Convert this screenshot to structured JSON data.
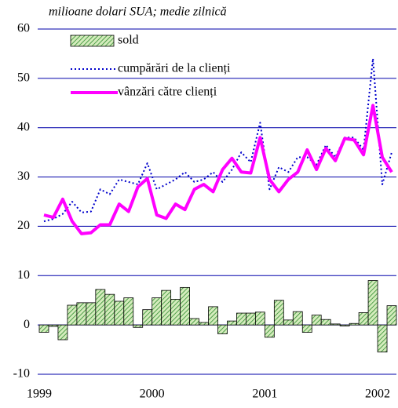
{
  "chart_data": {
    "type": "combo",
    "subtitle": "milioane dolari SUA; medie zilnică",
    "categories": [
      "1999",
      null,
      null,
      null,
      null,
      null,
      null,
      null,
      null,
      null,
      null,
      null,
      "2000",
      null,
      null,
      null,
      null,
      null,
      null,
      null,
      null,
      null,
      null,
      null,
      "2001",
      null,
      null,
      null,
      null,
      null,
      null,
      null,
      null,
      null,
      null,
      null,
      "2002",
      null
    ],
    "series": [
      {
        "name": "sold",
        "type": "bar",
        "color": "#2e8b2e",
        "fill": "#c8e6b0",
        "values": [
          -1.5,
          -0.3,
          -3,
          4,
          4.5,
          4.5,
          7.2,
          6.2,
          4.8,
          5.5,
          -0.5,
          3.1,
          5.5,
          7,
          5.2,
          7.6,
          1.3,
          0.5,
          3.7,
          -1.8,
          0.8,
          2.4,
          2.4,
          2.6,
          -2.5,
          5,
          1,
          2.7,
          -1.5,
          2,
          1.1,
          0.2,
          -0.2,
          0.3,
          2.5,
          9,
          -5.5,
          3.9
        ]
      },
      {
        "name": "cumpărări de la clienți",
        "type": "line",
        "style": "dotted",
        "color": "#0000cc",
        "values": [
          21,
          21.5,
          22.5,
          25,
          22.8,
          23,
          27.5,
          26.5,
          29.5,
          29,
          28.5,
          32.8,
          27.5,
          28.5,
          29.5,
          31,
          29,
          29.5,
          31,
          29,
          31.5,
          35,
          33,
          41,
          27.5,
          32,
          31,
          34,
          34,
          32.5,
          36.5,
          34,
          38,
          38,
          35.5,
          54,
          28.5,
          35
        ]
      },
      {
        "name": "vânzări către clienți",
        "type": "line",
        "style": "solid",
        "color": "#ff00ff",
        "values": [
          22.3,
          21.8,
          25.5,
          21,
          18.5,
          18.7,
          20.3,
          20.3,
          24.5,
          23,
          28,
          29.7,
          22.3,
          21.6,
          24.5,
          23.4,
          27.5,
          28.5,
          27,
          31.5,
          33.8,
          31,
          30.8,
          38,
          29.5,
          27,
          29.5,
          31,
          35.5,
          31.5,
          35.8,
          33.3,
          37.8,
          37.5,
          34.5,
          44.5,
          34,
          31
        ]
      }
    ],
    "ylim": [
      -10,
      60
    ],
    "yticks": [
      -10,
      0,
      10,
      20,
      30,
      40,
      50,
      60
    ],
    "grid": true
  }
}
